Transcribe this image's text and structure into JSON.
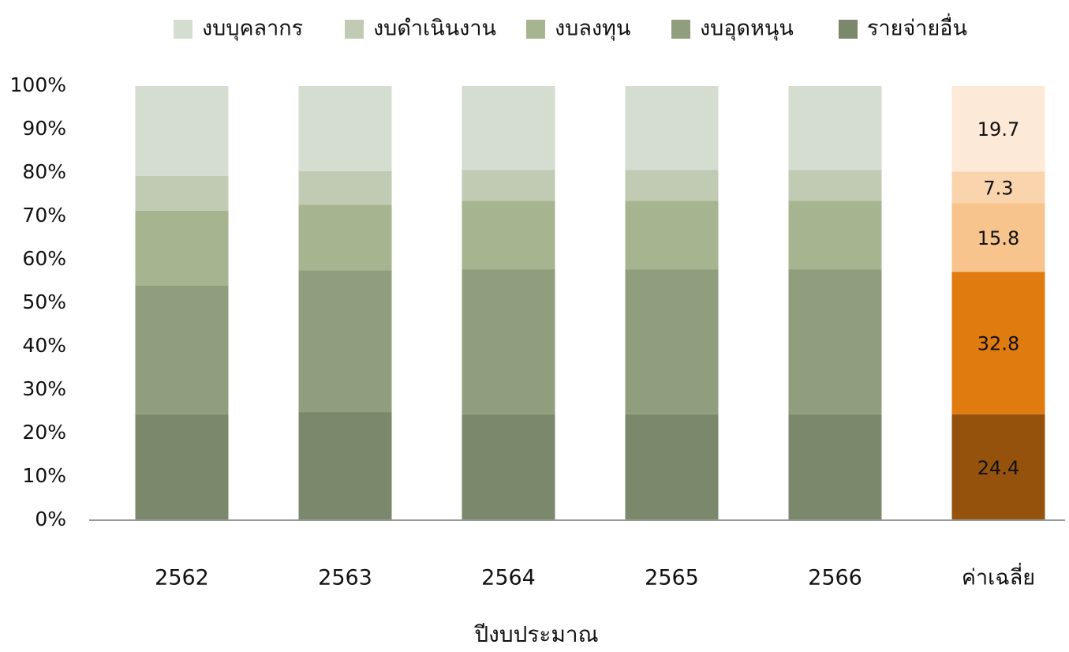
{
  "chart_data": {
    "type": "stacked_bar",
    "x_label": "ปีงบประมาณ",
    "categories": [
      "2562",
      "2563",
      "2564",
      "2565",
      "2566",
      "ค่าเฉลี่ย"
    ],
    "series": [
      {
        "name": "รายจ่ายอื่น",
        "color": "#7b886b",
        "highlight_color": "#94520c",
        "values": [
          24.4,
          24.9,
          24.4,
          24.4,
          24.4,
          24.4
        ]
      },
      {
        "name": "งบอุดหนุน",
        "color": "#909e7d",
        "highlight_color": "#e07b10",
        "values": [
          29.6,
          32.7,
          33.4,
          33.4,
          33.4,
          32.8
        ]
      },
      {
        "name": "งบลงทุน",
        "color": "#a6b58f",
        "highlight_color": "#f7c48e",
        "values": [
          17.3,
          15.1,
          15.8,
          15.8,
          15.8,
          15.8
        ]
      },
      {
        "name": "งบดำเนินงาน",
        "color": "#c1cab3",
        "highlight_color": "#fad4ac",
        "values": [
          8.0,
          7.7,
          7.1,
          7.1,
          7.1,
          7.3
        ]
      },
      {
        "name": "งบบุคลากร",
        "color": "#d5dcd0",
        "highlight_color": "#fde9d7",
        "values": [
          20.7,
          19.6,
          19.3,
          19.3,
          19.3,
          19.7
        ]
      }
    ],
    "highlight_index": 5,
    "legend_position": "top",
    "grid": false,
    "ylim": [
      0,
      100
    ],
    "yticks": [
      {
        "value": 0,
        "label": "0%"
      },
      {
        "value": 10,
        "label": "10%"
      },
      {
        "value": 20,
        "label": "20%"
      },
      {
        "value": 30,
        "label": "30%"
      },
      {
        "value": 40,
        "label": "40%"
      },
      {
        "value": 50,
        "label": "50%"
      },
      {
        "value": 60,
        "label": "60%"
      },
      {
        "value": 70,
        "label": "70%"
      },
      {
        "value": 80,
        "label": "80%"
      },
      {
        "value": 90,
        "label": "90%"
      },
      {
        "value": 100,
        "label": "100%"
      }
    ]
  }
}
